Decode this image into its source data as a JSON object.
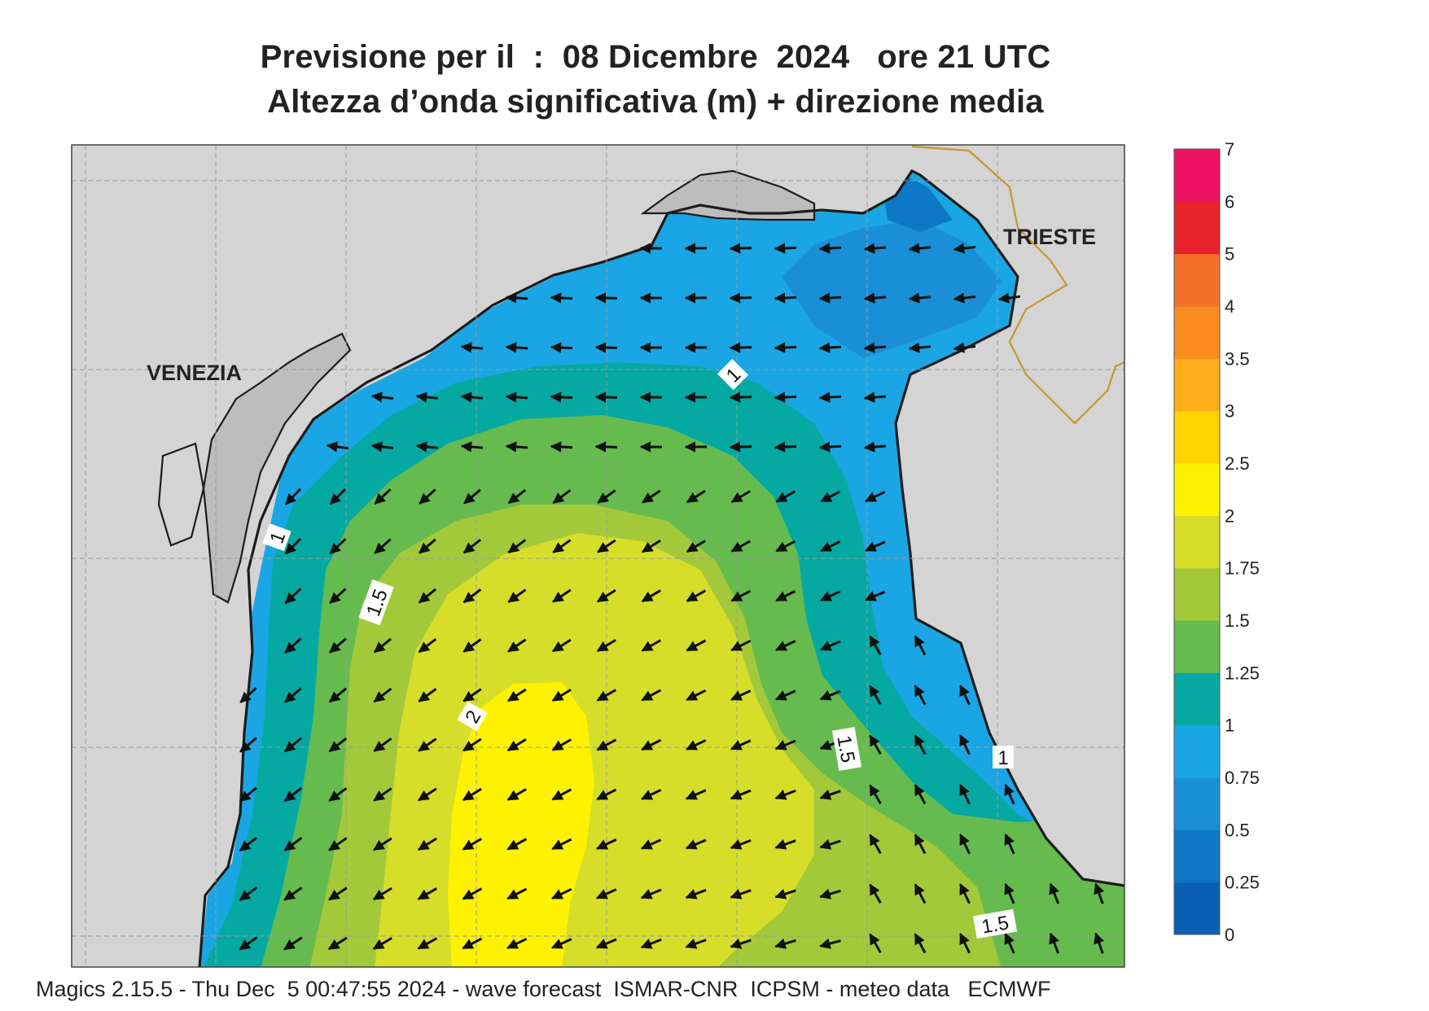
{
  "title_line1": "Previsione per il  :  08 Dicembre  2024   ore 21 UTC",
  "title_line2": "Altezza d’onda significativa (m) + direzione media",
  "footer": "Magics 2.15.5 - Thu Dec  5 00:47:55 2024 - wave forecast  ISMAR-CNR  ICPSM - meteo data   ECMWF",
  "places": [
    {
      "name": "VENEZIA"
    },
    {
      "name": "TRIESTE"
    }
  ],
  "contour_labels": [
    "1",
    "1.5",
    "2",
    "1",
    "1.5",
    "1",
    "1.5"
  ],
  "colorbar": {
    "ticks": [
      "0",
      "0.25",
      "0.5",
      "0.75",
      "1",
      "1.25",
      "1.5",
      "1.75",
      "2",
      "2.5",
      "3",
      "3.5",
      "4",
      "5",
      "6",
      "7"
    ],
    "colors": [
      "#0a5fb4",
      "#0d78c6",
      "#1a8fd8",
      "#1aa6e4",
      "#05a9a2",
      "#66bb4e",
      "#a3c93a",
      "#d6de2a",
      "#fff200",
      "#ffd400",
      "#ffad1a",
      "#fb8c20",
      "#f4702a",
      "#e8222b",
      "#ee1061"
    ]
  },
  "colors": {
    "land": "#d4d4d4",
    "lagoon_land": "#bdbdbd",
    "coast": "#1c1c1c",
    "border": "#c8962c",
    "grid": "#9a9a9a"
  }
}
